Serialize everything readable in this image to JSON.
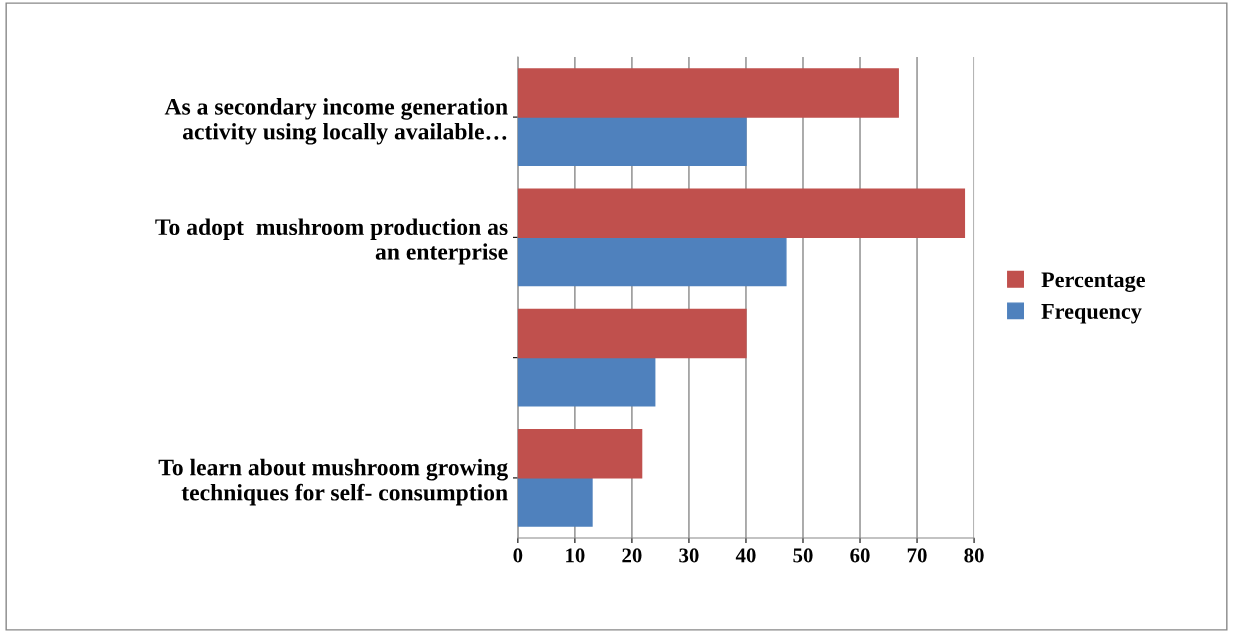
{
  "chart_data": {
    "type": "bar",
    "orientation": "horizontal",
    "categories": [
      "As a secondary income generation\nactivity using locally available…",
      "To adopt  mushroom production as\nan enterprise",
      null,
      "To learn about mushroom growing\ntechniques for self- consumption"
    ],
    "series": [
      {
        "name": "Frequency",
        "color": "#4f81bd",
        "values": [
          40,
          47,
          24,
          13
        ]
      },
      {
        "name": "Percentage",
        "color": "#c0504d",
        "values": [
          66.7,
          78.3,
          40,
          21.7
        ]
      }
    ],
    "xlim": [
      0,
      80
    ],
    "xticks": [
      0,
      10,
      20,
      30,
      40,
      50,
      60,
      70,
      80
    ],
    "grid": "x",
    "legend": "right"
  }
}
